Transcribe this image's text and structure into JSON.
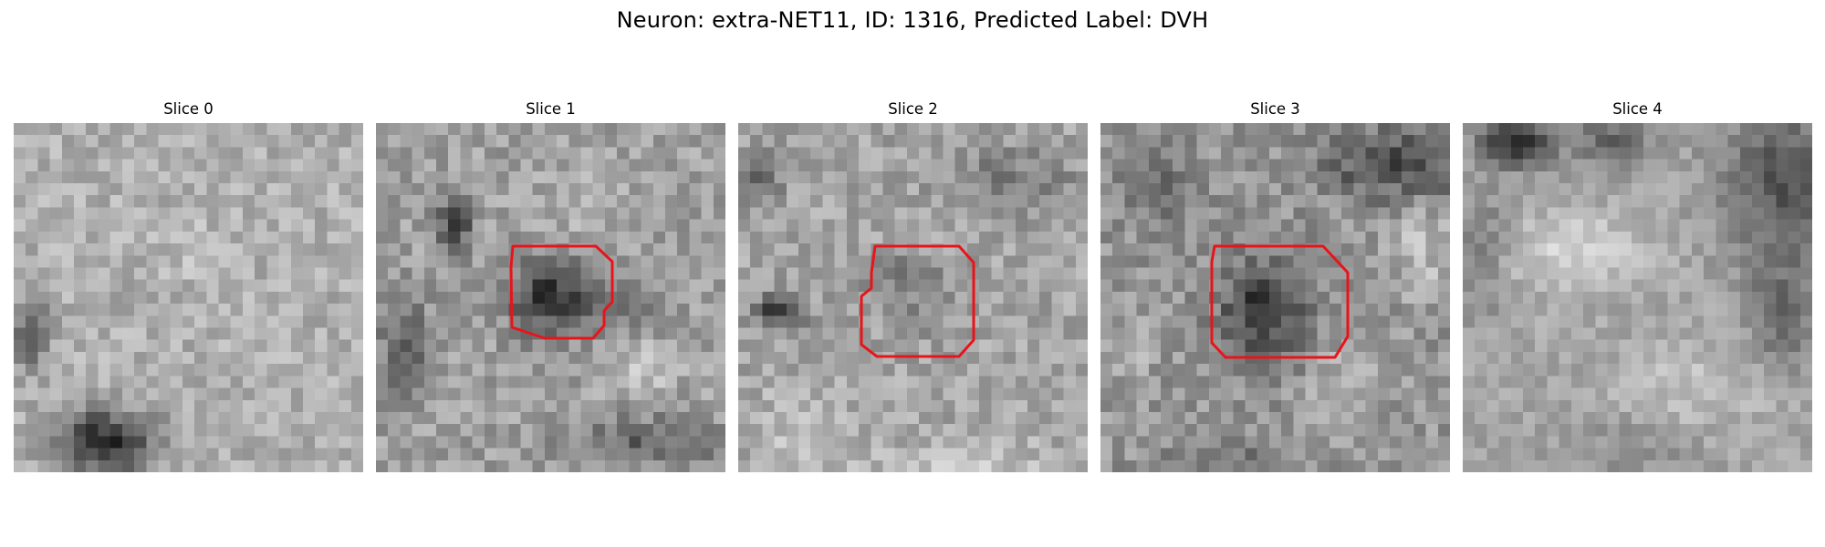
{
  "figure": {
    "title": "Neuron: extra-NET11, ID: 1316, Predicted Label: DVH",
    "contour_color": "#e8141b"
  },
  "slices": [
    {
      "label": "Slice 0",
      "has_contour": false
    },
    {
      "label": "Slice 1",
      "has_contour": true
    },
    {
      "label": "Slice 2",
      "has_contour": true
    },
    {
      "label": "Slice 3",
      "has_contour": true
    },
    {
      "label": "Slice 4",
      "has_contour": false
    }
  ]
}
